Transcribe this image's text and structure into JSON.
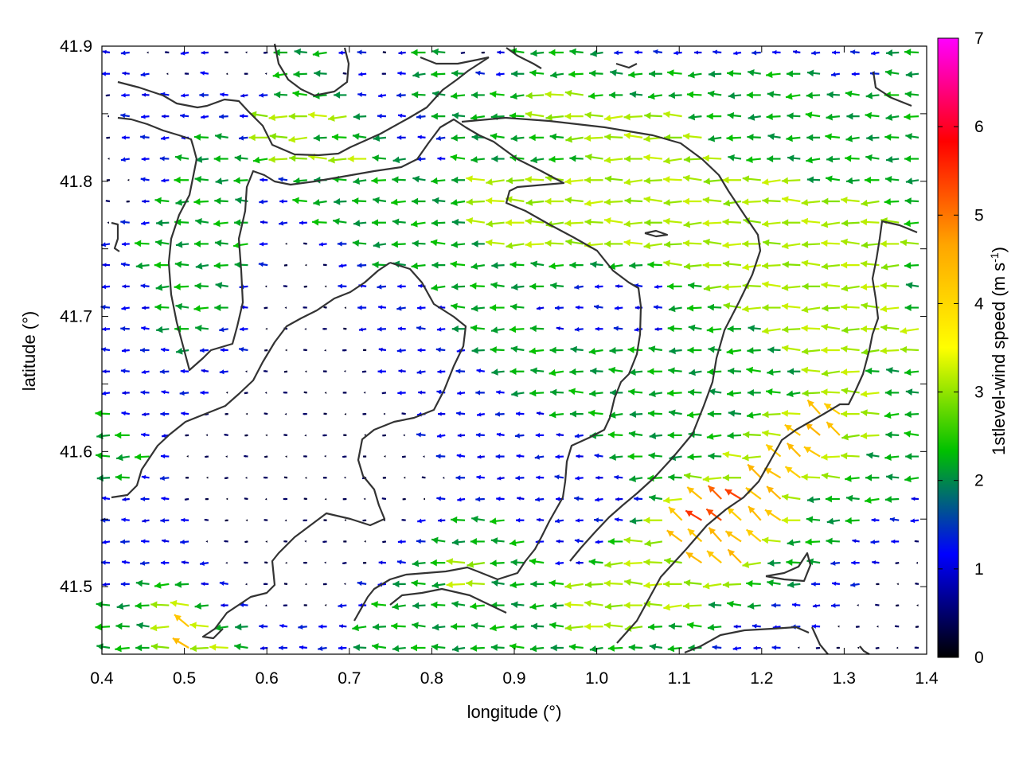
{
  "chart_data": {
    "type": "vector-field",
    "xlabel": "longitude (°)",
    "ylabel": "latitude (°)",
    "colorbar_label": "1stlevel-wind speed (m s",
    "colorbar_label_sup": "-1",
    "colorbar_label_close": ")",
    "xlim": [
      0.4,
      1.4
    ],
    "ylim": [
      41.45,
      41.9
    ],
    "x_ticks": [
      "0.4",
      "0.5",
      "0.6",
      "0.7",
      "0.8",
      "0.9",
      "1.0",
      "1.1",
      "1.2",
      "1.3",
      "1.4"
    ],
    "y_ticks": [
      "41.5",
      "41.6",
      "41.7",
      "41.8",
      "41.9"
    ],
    "colorbar_ticks": [
      "0",
      "1",
      "2",
      "3",
      "4",
      "5",
      "6",
      "7"
    ],
    "colorbar_range": [
      0,
      7
    ],
    "colormap": [
      "#000000",
      "#0000ff",
      "#00c000",
      "#ffff00",
      "#ffa500",
      "#ff0000",
      "#ff00ff"
    ],
    "contour_color": "#333333",
    "grid": false,
    "vector_rows": [
      [
        1,
        1,
        0,
        0,
        1,
        1,
        0,
        0,
        0,
        2,
        2,
        2,
        1,
        1,
        0,
        1,
        2,
        2,
        0,
        0,
        1,
        2,
        2,
        2,
        2,
        2,
        1,
        1,
        1,
        1,
        1,
        1,
        1,
        1,
        1,
        1,
        1,
        1,
        1,
        1,
        2,
        2
      ],
      [
        1,
        1,
        1,
        0,
        0,
        1,
        0,
        0,
        0,
        2,
        2,
        2,
        0,
        1,
        0,
        1,
        2,
        2,
        2,
        1,
        1,
        2,
        2,
        2,
        2,
        2,
        2,
        2,
        2,
        2,
        2,
        2,
        2,
        2,
        2,
        2,
        2,
        1,
        1,
        1,
        2,
        2
      ],
      [
        0,
        1,
        1,
        1,
        1,
        1,
        1,
        1,
        1,
        2,
        2,
        2,
        2,
        1,
        1,
        1,
        2,
        2,
        2,
        2,
        2,
        2,
        3,
        3,
        3,
        2,
        2,
        2,
        2,
        2,
        2,
        2,
        2,
        2,
        2,
        2,
        2,
        2,
        2,
        2,
        2,
        2
      ],
      [
        0,
        1,
        1,
        1,
        1,
        1,
        1,
        1,
        3,
        3,
        3,
        3,
        3,
        2,
        1,
        1,
        1,
        2,
        2,
        2,
        2,
        2,
        3,
        3,
        3,
        3,
        3,
        3,
        3,
        3,
        2,
        2,
        2,
        2,
        2,
        2,
        2,
        2,
        2,
        2,
        2,
        2
      ],
      [
        0,
        1,
        1,
        1,
        1,
        2,
        2,
        1,
        3,
        3,
        3,
        2,
        2,
        2,
        2,
        1,
        1,
        1,
        2,
        2,
        2,
        2,
        2,
        2,
        3,
        3,
        3,
        3,
        3,
        3,
        3,
        2,
        2,
        2,
        2,
        2,
        2,
        2,
        2,
        2,
        2,
        2
      ],
      [
        0,
        1,
        1,
        1,
        2,
        2,
        2,
        2,
        2,
        3,
        3,
        3,
        3,
        3,
        2,
        2,
        1,
        1,
        2,
        2,
        2,
        2,
        2,
        2,
        2,
        3,
        3,
        3,
        3,
        3,
        3,
        3,
        2,
        2,
        2,
        2,
        2,
        2,
        2,
        2,
        2,
        2
      ],
      [
        0,
        0,
        1,
        1,
        2,
        2,
        2,
        2,
        1,
        1,
        2,
        2,
        2,
        2,
        2,
        2,
        2,
        2,
        2,
        3,
        3,
        3,
        3,
        3,
        3,
        3,
        3,
        3,
        3,
        3,
        3,
        3,
        3,
        3,
        3,
        3,
        2,
        2,
        2,
        2,
        2,
        2
      ],
      [
        0,
        0,
        1,
        2,
        2,
        2,
        2,
        2,
        1,
        1,
        2,
        2,
        2,
        2,
        2,
        2,
        2,
        2,
        2,
        3,
        3,
        3,
        3,
        3,
        3,
        3,
        3,
        3,
        3,
        3,
        3,
        3,
        3,
        3,
        3,
        3,
        3,
        3,
        3,
        3,
        2,
        2
      ],
      [
        0,
        1,
        1,
        2,
        2,
        2,
        2,
        2,
        1,
        1,
        1,
        2,
        2,
        2,
        2,
        2,
        2,
        2,
        2,
        3,
        3,
        3,
        3,
        3,
        3,
        3,
        3,
        3,
        3,
        3,
        3,
        3,
        3,
        3,
        3,
        3,
        3,
        3,
        3,
        3,
        3,
        2
      ],
      [
        1,
        1,
        2,
        2,
        2,
        2,
        2,
        2,
        1,
        0,
        0,
        1,
        1,
        2,
        2,
        2,
        2,
        2,
        2,
        2,
        3,
        3,
        3,
        3,
        3,
        3,
        3,
        3,
        3,
        3,
        3,
        3,
        3,
        3,
        3,
        3,
        3,
        3,
        3,
        3,
        3,
        3
      ],
      [
        1,
        1,
        2,
        2,
        2,
        2,
        2,
        2,
        1,
        0,
        0,
        0,
        1,
        1,
        2,
        2,
        2,
        2,
        2,
        2,
        2,
        2,
        2,
        2,
        2,
        2,
        2,
        2,
        2,
        3,
        3,
        3,
        3,
        3,
        3,
        3,
        3,
        3,
        3,
        3,
        3,
        2
      ],
      [
        1,
        1,
        1,
        2,
        2,
        2,
        2,
        1,
        0,
        0,
        0,
        0,
        1,
        1,
        1,
        1,
        1,
        2,
        2,
        2,
        2,
        2,
        2,
        2,
        1,
        1,
        1,
        1,
        1,
        2,
        2,
        3,
        3,
        3,
        3,
        3,
        3,
        3,
        3,
        3,
        3,
        2
      ],
      [
        1,
        1,
        1,
        2,
        2,
        2,
        2,
        1,
        0,
        0,
        0,
        0,
        0,
        1,
        1,
        1,
        1,
        1,
        2,
        2,
        2,
        2,
        1,
        1,
        1,
        1,
        1,
        1,
        1,
        2,
        2,
        2,
        3,
        3,
        3,
        3,
        3,
        3,
        3,
        3,
        3,
        2
      ],
      [
        1,
        1,
        1,
        2,
        2,
        2,
        1,
        1,
        0,
        0,
        0,
        0,
        0,
        1,
        1,
        1,
        1,
        1,
        2,
        2,
        2,
        2,
        2,
        1,
        1,
        1,
        1,
        1,
        1,
        2,
        2,
        2,
        2,
        2,
        3,
        3,
        3,
        3,
        3,
        3,
        3,
        3
      ],
      [
        1,
        1,
        1,
        1,
        2,
        1,
        1,
        1,
        0,
        0,
        0,
        0,
        0,
        0,
        1,
        1,
        1,
        1,
        1,
        2,
        2,
        2,
        2,
        2,
        2,
        2,
        2,
        2,
        2,
        2,
        2,
        2,
        2,
        2,
        2,
        3,
        3,
        3,
        3,
        3,
        3,
        3
      ],
      [
        1,
        1,
        1,
        1,
        1,
        1,
        1,
        0,
        0,
        0,
        0,
        0,
        0,
        0,
        1,
        1,
        1,
        1,
        1,
        1,
        2,
        2,
        2,
        2,
        2,
        2,
        2,
        2,
        2,
        2,
        2,
        2,
        2,
        2,
        2,
        2,
        3,
        3,
        3,
        2,
        2,
        2
      ],
      [
        1,
        1,
        1,
        1,
        1,
        1,
        0,
        0,
        0,
        0,
        0,
        0,
        0,
        0,
        0,
        1,
        1,
        1,
        1,
        1,
        1,
        2,
        2,
        2,
        2,
        2,
        2,
        2,
        2,
        2,
        2,
        2,
        2,
        2,
        2,
        2,
        3,
        3,
        3,
        3,
        2,
        2
      ],
      [
        2,
        1,
        1,
        1,
        1,
        0,
        0,
        0,
        0,
        0,
        0,
        0,
        0,
        0,
        0,
        0,
        1,
        1,
        1,
        1,
        1,
        1,
        1,
        2,
        2,
        2,
        2,
        2,
        2,
        2,
        2,
        2,
        2,
        2,
        3,
        3,
        4,
        4,
        3,
        3,
        2,
        2
      ],
      [
        2,
        2,
        1,
        1,
        0,
        0,
        0,
        0,
        0,
        0,
        0,
        0,
        0,
        0,
        0,
        0,
        1,
        1,
        1,
        1,
        1,
        1,
        1,
        1,
        1,
        2,
        2,
        2,
        2,
        2,
        2,
        2,
        2,
        3,
        3,
        4,
        4,
        4,
        3,
        3,
        2,
        2
      ],
      [
        2,
        2,
        2,
        1,
        0,
        0,
        0,
        0,
        0,
        0,
        0,
        0,
        0,
        0,
        0,
        0,
        0,
        1,
        1,
        1,
        1,
        1,
        1,
        1,
        1,
        1,
        2,
        2,
        2,
        2,
        2,
        2,
        3,
        3,
        4,
        4,
        4,
        3,
        3,
        2,
        2,
        2
      ],
      [
        2,
        2,
        1,
        1,
        0,
        0,
        0,
        0,
        0,
        0,
        0,
        0,
        0,
        0,
        0,
        0,
        0,
        0,
        1,
        1,
        1,
        1,
        1,
        1,
        1,
        1,
        1,
        2,
        2,
        2,
        3,
        3,
        3,
        4,
        4,
        4,
        3,
        3,
        2,
        2,
        2,
        2
      ],
      [
        1,
        1,
        1,
        1,
        0,
        0,
        0,
        0,
        0,
        0,
        0,
        0,
        0,
        0,
        0,
        0,
        0,
        1,
        1,
        1,
        1,
        1,
        1,
        1,
        1,
        1,
        1,
        1,
        2,
        3,
        4,
        5,
        5,
        4,
        4,
        3,
        2,
        2,
        2,
        2,
        2,
        1
      ],
      [
        1,
        1,
        1,
        1,
        1,
        0,
        0,
        0,
        0,
        0,
        0,
        0,
        0,
        0,
        0,
        0,
        1,
        1,
        2,
        2,
        2,
        1,
        1,
        1,
        1,
        1,
        1,
        2,
        3,
        4,
        5,
        5,
        4,
        4,
        4,
        3,
        2,
        2,
        2,
        1,
        1,
        1
      ],
      [
        1,
        1,
        1,
        1,
        1,
        0,
        0,
        0,
        0,
        0,
        0,
        0,
        0,
        0,
        0,
        1,
        1,
        2,
        2,
        2,
        2,
        2,
        1,
        1,
        1,
        1,
        2,
        3,
        3,
        4,
        4,
        4,
        4,
        4,
        3,
        2,
        2,
        2,
        1,
        1,
        1,
        0
      ],
      [
        1,
        1,
        1,
        1,
        1,
        1,
        0,
        0,
        0,
        0,
        0,
        0,
        0,
        0,
        1,
        1,
        2,
        2,
        3,
        3,
        2,
        2,
        2,
        1,
        1,
        2,
        3,
        3,
        3,
        3,
        4,
        4,
        4,
        3,
        2,
        2,
        2,
        1,
        1,
        1,
        0,
        0
      ],
      [
        1,
        1,
        2,
        2,
        2,
        1,
        1,
        0,
        0,
        0,
        0,
        0,
        0,
        1,
        1,
        2,
        2,
        2,
        3,
        3,
        2,
        2,
        2,
        2,
        3,
        3,
        3,
        3,
        3,
        3,
        3,
        3,
        3,
        2,
        2,
        2,
        1,
        1,
        1,
        0,
        0,
        0
      ],
      [
        2,
        2,
        2,
        3,
        3,
        2,
        1,
        1,
        0,
        0,
        0,
        0,
        1,
        1,
        2,
        2,
        2,
        2,
        2,
        2,
        2,
        2,
        2,
        2,
        3,
        3,
        3,
        3,
        3,
        3,
        3,
        2,
        2,
        2,
        1,
        1,
        1,
        1,
        0,
        0,
        0,
        0
      ],
      [
        2,
        2,
        2,
        3,
        4,
        3,
        2,
        2,
        1,
        1,
        1,
        1,
        1,
        2,
        2,
        2,
        2,
        2,
        2,
        2,
        2,
        2,
        2,
        2,
        3,
        3,
        3,
        3,
        2,
        2,
        2,
        2,
        1,
        1,
        1,
        1,
        1,
        0,
        0,
        0,
        0,
        0
      ],
      [
        2,
        2,
        2,
        3,
        4,
        3,
        3,
        2,
        1,
        1,
        1,
        1,
        1,
        2,
        2,
        2,
        2,
        2,
        2,
        2,
        2,
        2,
        2,
        2,
        2,
        2,
        2,
        2,
        2,
        2,
        2,
        1,
        1,
        1,
        1,
        0,
        0,
        0,
        0,
        0,
        0,
        0
      ]
    ]
  }
}
